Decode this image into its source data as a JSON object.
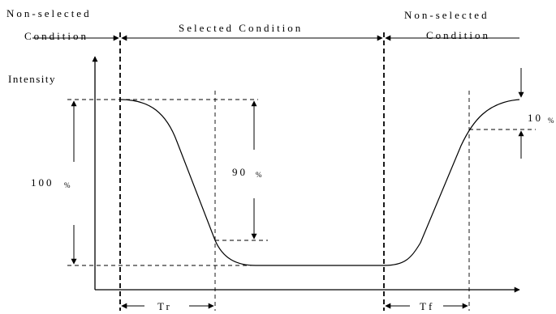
{
  "diagram": {
    "top_left_label": [
      "Non-selected",
      "Condition"
    ],
    "top_center_label": "Selected Condition",
    "top_right_label": [
      "Non-selected",
      "Condition"
    ],
    "y_axis_label": "Intensity",
    "left_magnitude": {
      "value": "100",
      "unit": "%"
    },
    "center_magnitude": {
      "value": "90",
      "unit": "%"
    },
    "right_magnitude": {
      "value": "10",
      "unit": "%"
    },
    "rise_time_label": "Tr",
    "fall_time_label": "Tf"
  }
}
